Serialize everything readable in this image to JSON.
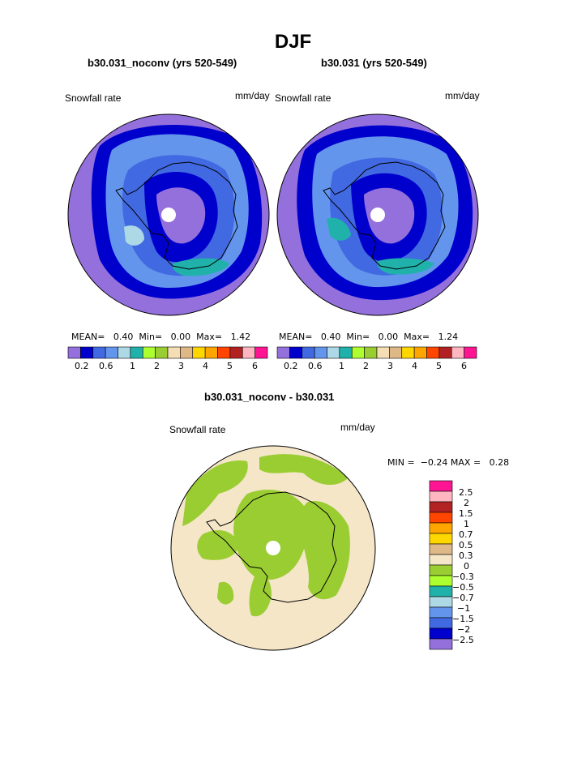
{
  "page": {
    "title": "DJF"
  },
  "colors": {
    "palette_top": [
      "#9370DB",
      "#0000CD",
      "#4169E1",
      "#6495ED",
      "#ADD8E6",
      "#20B2AA",
      "#ADFF2F",
      "#9ACD32",
      "#F5DEB3",
      "#DEB887",
      "#FFD700",
      "#FFA500",
      "#FF4500",
      "#B22222",
      "#FFB6C1",
      "#FF1493"
    ],
    "palette_diff": [
      "#9370DB",
      "#0000CD",
      "#4169E1",
      "#6495ED",
      "#ADD8E6",
      "#20B2AA",
      "#ADFF2F",
      "#9ACD32",
      "#F5E6C8",
      "#DEB887",
      "#FFD700",
      "#FFA500",
      "#FF4500",
      "#B22222",
      "#FFB6C1",
      "#FF1493"
    ],
    "coast": "#000000",
    "pole_hole": "#FFFFFF"
  },
  "chart_data": [
    {
      "type": "polar-contour-map",
      "projection": "south-polar-stereographic",
      "title": "b30.031_noconv (yrs 520-549)",
      "left_label": "Snowfall rate",
      "right_label": "mm/day",
      "stats": {
        "mean_label": "MEAN=",
        "mean": "0.40",
        "min_label": "Min=",
        "min": "0.00",
        "max_label": "Max=",
        "max": "1.42"
      },
      "colorbar_tick_labels": [
        "0.2",
        "0.6",
        "1",
        "2",
        "3",
        "4",
        "5",
        "6"
      ]
    },
    {
      "type": "polar-contour-map",
      "projection": "south-polar-stereographic",
      "title": "b30.031 (yrs 520-549)",
      "left_label": "Snowfall rate",
      "right_label": "mm/day",
      "stats": {
        "mean_label": "MEAN=",
        "mean": "0.40",
        "min_label": "Min=",
        "min": "0.00",
        "max_label": "Max=",
        "max": "1.24"
      },
      "colorbar_tick_labels": [
        "0.2",
        "0.6",
        "1",
        "2",
        "3",
        "4",
        "5",
        "6"
      ]
    },
    {
      "type": "polar-contour-map",
      "projection": "south-polar-stereographic",
      "title": "b30.031_noconv - b30.031",
      "left_label": "Snowfall rate",
      "right_label": "mm/day",
      "stats": {
        "min_label": "MIN =",
        "min": "−0.24",
        "max_label": "MAX =",
        "max": "0.28"
      },
      "colorbar_tick_labels": [
        "2.5",
        "2",
        "1.5",
        "1",
        "0.7",
        "0.5",
        "0.3",
        "0",
        "−0.3",
        "−0.5",
        "−0.7",
        "−1",
        "−1.5",
        "−2",
        "−2.5"
      ]
    }
  ]
}
